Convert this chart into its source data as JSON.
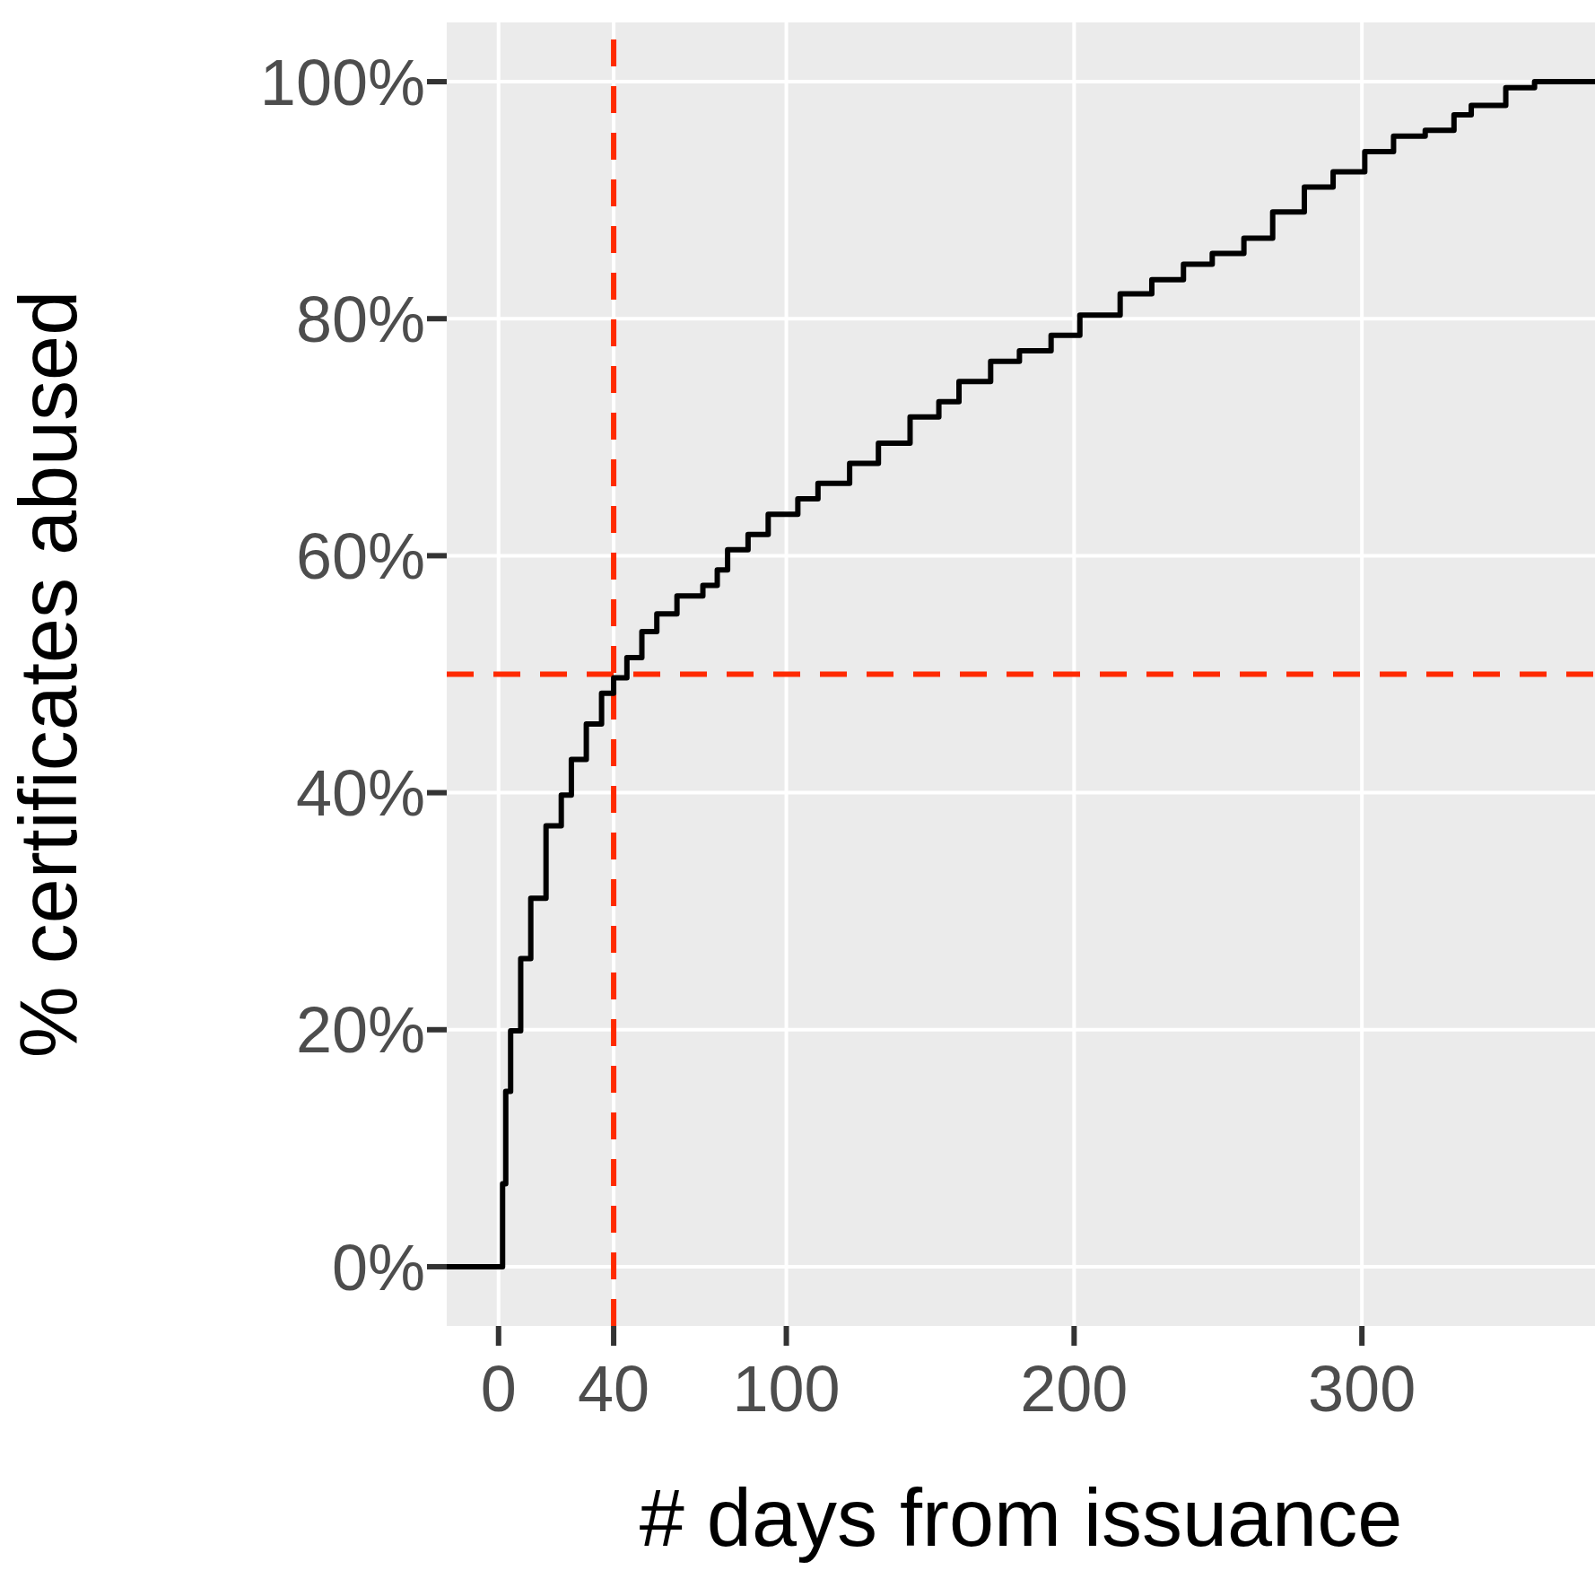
{
  "chart_data": {
    "type": "step",
    "xlabel": "# days from issuance",
    "ylabel": "% certificates abused",
    "x": [
      -18,
      0,
      1.4,
      2.5,
      4.2,
      7.7,
      11.2,
      16.5,
      21.8,
      25.3,
      30.5,
      35.8,
      40,
      44.6,
      49.8,
      55,
      62,
      71,
      76,
      79.6,
      86.7,
      93.7,
      104,
      111,
      122,
      132,
      143,
      153,
      160,
      171,
      181,
      192,
      202,
      216,
      227,
      238,
      248,
      259,
      269,
      280,
      290,
      301,
      311,
      322,
      332,
      338,
      350,
      360,
      381
    ],
    "series": [
      {
        "color": "#000000",
        "values": [
          0,
          0,
          7,
          14.8,
          19.9,
          26,
          31.1,
          37.2,
          39.8,
          42.8,
          45.8,
          48.4,
          49.7,
          51.4,
          53.6,
          55.1,
          56.6,
          57.5,
          58.8,
          60.5,
          61.8,
          63.5,
          64.8,
          66.1,
          67.8,
          69.5,
          71.7,
          73,
          74.7,
          76.4,
          77.3,
          78.6,
          80.3,
          82.1,
          83.3,
          84.6,
          85.5,
          86.8,
          89,
          91.1,
          92.4,
          94.1,
          95.4,
          95.9,
          97.2,
          98,
          99.5,
          100,
          100
        ]
      }
    ],
    "xlim": [
      -18,
      381
    ],
    "xticks": [
      0,
      40,
      100,
      200,
      300
    ],
    "ylim": [
      -5,
      105
    ],
    "yticks": [
      {
        "value": 0,
        "label": "0%"
      },
      {
        "value": 20,
        "label": "20%"
      },
      {
        "value": 40,
        "label": "40%"
      },
      {
        "value": 60,
        "label": "60%"
      },
      {
        "value": 80,
        "label": "80%"
      },
      {
        "value": 100,
        "label": "100%"
      }
    ],
    "grid": true,
    "ref_lines": [
      {
        "axis": "x",
        "value": 40,
        "color": "#ff2a00",
        "line_style": "dashed"
      },
      {
        "axis": "y",
        "value": 50,
        "color": "#ff2a00",
        "line_style": "dashed"
      }
    ]
  }
}
